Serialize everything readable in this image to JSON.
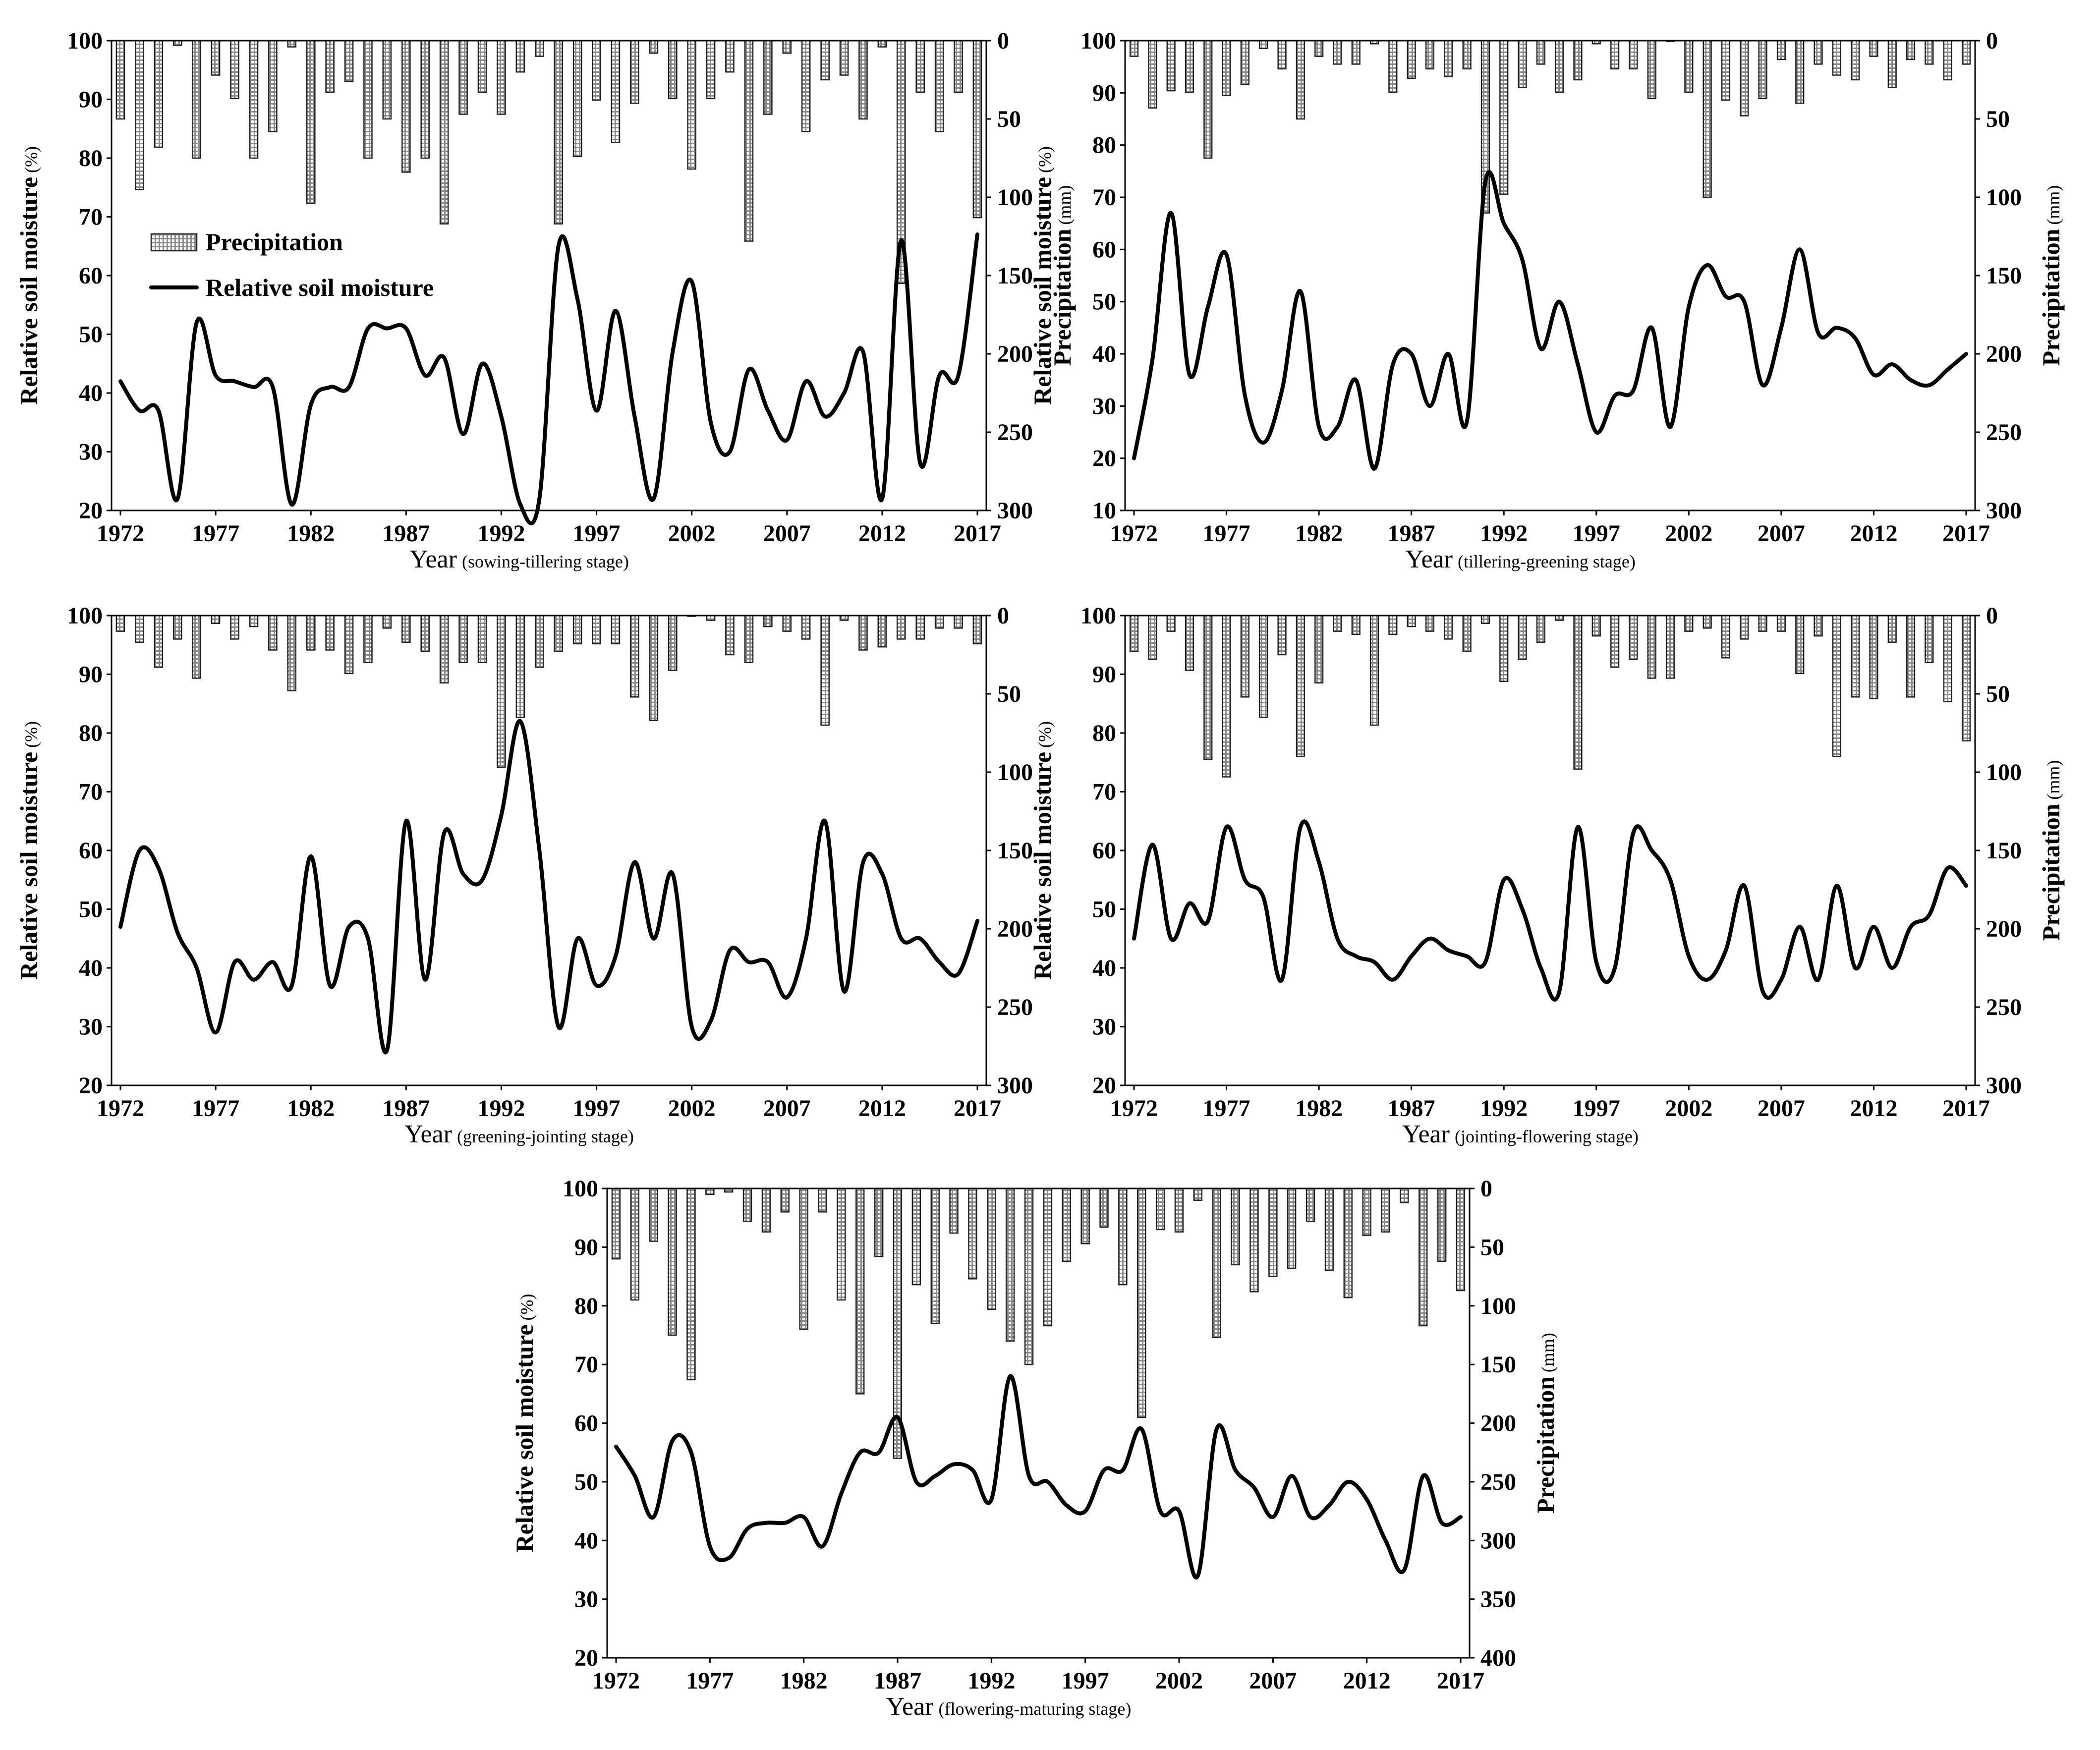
{
  "legend": {
    "precipitation": "Precipitation",
    "soil_moisture": "Relative soil moisture"
  },
  "chart_data": [
    {
      "type": "bar+line",
      "xlabel": "Year",
      "xlabel_note": "(sowing-tillering stage)",
      "ylabel": "Relative soil moisture",
      "ylabel_unit": "(%)",
      "y2label": "Precipitation",
      "y2label_unit": "(mm)",
      "ylim": [
        20,
        100
      ],
      "yticks": [
        20,
        30,
        40,
        50,
        60,
        70,
        80,
        90,
        100
      ],
      "y2lim": [
        0,
        300
      ],
      "y2ticks": [
        0,
        50,
        100,
        150,
        200,
        250,
        300
      ],
      "y2_reversed": true,
      "xticks": [
        1972,
        1977,
        1982,
        1987,
        1992,
        1997,
        2002,
        2007,
        2012,
        2017
      ],
      "years": [
        1972,
        1973,
        1974,
        1975,
        1976,
        1977,
        1978,
        1979,
        1980,
        1981,
        1982,
        1983,
        1984,
        1985,
        1986,
        1987,
        1988,
        1989,
        1990,
        1991,
        1992,
        1993,
        1994,
        1995,
        1996,
        1997,
        1998,
        1999,
        2000,
        2001,
        2002,
        2003,
        2004,
        2005,
        2006,
        2007,
        2008,
        2009,
        2010,
        2011,
        2012,
        2013,
        2014,
        2015,
        2016,
        2017
      ],
      "series": [
        {
          "name": "Precipitation",
          "kind": "bar",
          "axis": "y2",
          "values": [
            50,
            95,
            68,
            3,
            75,
            22,
            37,
            75,
            58,
            4,
            104,
            33,
            26,
            75,
            50,
            84,
            75,
            117,
            47,
            33,
            47,
            20,
            10,
            117,
            74,
            38,
            65,
            40,
            8,
            37,
            82,
            37,
            20,
            128,
            47,
            8,
            58,
            25,
            22,
            50,
            4,
            155,
            33,
            58,
            33,
            113
          ]
        },
        {
          "name": "Relative soil moisture",
          "kind": "line",
          "axis": "y",
          "values": [
            42,
            37,
            37,
            22,
            52,
            43,
            42,
            41,
            41,
            21,
            38,
            41,
            41,
            51,
            51,
            51,
            43,
            46,
            33,
            45,
            36,
            21,
            22,
            65,
            56,
            37,
            54,
            36,
            22,
            47,
            59,
            35,
            30,
            44,
            37,
            32,
            42,
            36,
            40,
            47,
            22,
            66,
            28,
            43,
            43,
            67
          ]
        }
      ]
    },
    {
      "type": "bar+line",
      "xlabel": "Year",
      "xlabel_note": "(tillering-greening stage)",
      "ylabel": "Relative soil moisture",
      "ylabel_unit": "(%)",
      "y2label": "Precipitation",
      "y2label_unit": "(mm)",
      "ylim": [
        10,
        100
      ],
      "yticks": [
        10,
        20,
        30,
        40,
        50,
        60,
        70,
        80,
        90,
        100
      ],
      "y2lim": [
        0,
        300
      ],
      "y2ticks": [
        0,
        50,
        100,
        150,
        200,
        250,
        300
      ],
      "y2_reversed": true,
      "xticks": [
        1972,
        1977,
        1982,
        1987,
        1992,
        1997,
        2002,
        2007,
        2012,
        2017
      ],
      "years": [
        1972,
        1973,
        1974,
        1975,
        1976,
        1977,
        1978,
        1979,
        1980,
        1981,
        1982,
        1983,
        1984,
        1985,
        1986,
        1987,
        1988,
        1989,
        1990,
        1991,
        1992,
        1993,
        1994,
        1995,
        1996,
        1997,
        1998,
        1999,
        2000,
        2001,
        2002,
        2003,
        2004,
        2005,
        2006,
        2007,
        2008,
        2009,
        2010,
        2011,
        2012,
        2013,
        2014,
        2015,
        2016,
        2017
      ],
      "series": [
        {
          "name": "Precipitation",
          "kind": "bar",
          "axis": "y2",
          "values": [
            10,
            43,
            32,
            33,
            75,
            35,
            28,
            5,
            18,
            50,
            10,
            15,
            15,
            2,
            33,
            24,
            18,
            23,
            18,
            110,
            98,
            30,
            15,
            33,
            25,
            2,
            18,
            18,
            37,
            0,
            33,
            100,
            38,
            48,
            37,
            12,
            40,
            15,
            22,
            25,
            10,
            30,
            12,
            15,
            25,
            15
          ]
        },
        {
          "name": "Relative soil moisture",
          "kind": "line",
          "axis": "y",
          "values": [
            20,
            39,
            67,
            36,
            49,
            59,
            32,
            23,
            33,
            52,
            26,
            26,
            35,
            18,
            38,
            40,
            30,
            40,
            27,
            73,
            65,
            58,
            41,
            50,
            38,
            25,
            32,
            33,
            45,
            26,
            49,
            57,
            51,
            50,
            34,
            45,
            60,
            44,
            45,
            43,
            36,
            38,
            35,
            34,
            37,
            40
          ]
        }
      ]
    },
    {
      "type": "bar+line",
      "xlabel": "Year",
      "xlabel_note": "(greening-jointing stage)",
      "ylabel": "Relative soil moisture",
      "ylabel_unit": "(%)",
      "y2label": "",
      "y2label_unit": "",
      "ylim": [
        20,
        100
      ],
      "yticks": [
        20,
        30,
        40,
        50,
        60,
        70,
        80,
        90,
        100
      ],
      "y2lim": [
        0,
        300
      ],
      "y2ticks": [
        0,
        50,
        100,
        150,
        200,
        250,
        300
      ],
      "y2_reversed": true,
      "xticks": [
        1972,
        1977,
        1982,
        1987,
        1992,
        1997,
        2002,
        2007,
        2012,
        2017
      ],
      "years": [
        1972,
        1973,
        1974,
        1975,
        1976,
        1977,
        1978,
        1979,
        1980,
        1981,
        1982,
        1983,
        1984,
        1985,
        1986,
        1987,
        1988,
        1989,
        1990,
        1991,
        1992,
        1993,
        1994,
        1995,
        1996,
        1997,
        1998,
        1999,
        2000,
        2001,
        2002,
        2003,
        2004,
        2005,
        2006,
        2007,
        2008,
        2009,
        2010,
        2011,
        2012,
        2013,
        2014,
        2015,
        2016,
        2017
      ],
      "series": [
        {
          "name": "Precipitation",
          "kind": "bar",
          "axis": "y2",
          "values": [
            10,
            17,
            33,
            15,
            40,
            5,
            15,
            7,
            22,
            48,
            22,
            22,
            37,
            30,
            8,
            17,
            23,
            43,
            30,
            30,
            97,
            65,
            33,
            23,
            18,
            18,
            18,
            52,
            67,
            35,
            0,
            3,
            25,
            30,
            7,
            10,
            15,
            70,
            3,
            22,
            20,
            15,
            15,
            8,
            8,
            18
          ]
        },
        {
          "name": "Relative soil moisture",
          "kind": "line",
          "axis": "y",
          "values": [
            47,
            60,
            57,
            46,
            40,
            29,
            41,
            38,
            41,
            37,
            59,
            37,
            47,
            45,
            26,
            65,
            38,
            63,
            56,
            55,
            66,
            82,
            60,
            30,
            45,
            37,
            42,
            58,
            45,
            56,
            30,
            31,
            43,
            41,
            41,
            35,
            45,
            65,
            36,
            58,
            56,
            45,
            45,
            41,
            39,
            48
          ]
        }
      ]
    },
    {
      "type": "bar+line",
      "xlabel": "Year",
      "xlabel_note": "(jointing-flowering stage)",
      "ylabel": "Relative soil moisture",
      "ylabel_unit": "(%)",
      "y2label": "Precipitation",
      "y2label_unit": "(mm)",
      "ylim": [
        20,
        100
      ],
      "yticks": [
        20,
        30,
        40,
        50,
        60,
        70,
        80,
        90,
        100
      ],
      "y2lim": [
        0,
        300
      ],
      "y2ticks": [
        0,
        50,
        100,
        150,
        200,
        250,
        300
      ],
      "y2_reversed": true,
      "xticks": [
        1972,
        1977,
        1982,
        1987,
        1992,
        1997,
        2002,
        2007,
        2012,
        2017
      ],
      "years": [
        1972,
        1973,
        1974,
        1975,
        1976,
        1977,
        1978,
        1979,
        1980,
        1981,
        1982,
        1983,
        1984,
        1985,
        1986,
        1987,
        1988,
        1989,
        1990,
        1991,
        1992,
        1993,
        1994,
        1995,
        1996,
        1997,
        1998,
        1999,
        2000,
        2001,
        2002,
        2003,
        2004,
        2005,
        2006,
        2007,
        2008,
        2009,
        2010,
        2011,
        2012,
        2013,
        2014,
        2015,
        2016,
        2017
      ],
      "series": [
        {
          "name": "Precipitation",
          "kind": "bar",
          "axis": "y2",
          "values": [
            23,
            28,
            10,
            35,
            92,
            103,
            52,
            65,
            25,
            90,
            43,
            10,
            12,
            70,
            12,
            7,
            10,
            15,
            23,
            5,
            42,
            28,
            17,
            3,
            98,
            13,
            33,
            28,
            40,
            40,
            10,
            8,
            27,
            15,
            10,
            10,
            37,
            13,
            90,
            52,
            53,
            17,
            52,
            30,
            55,
            80
          ]
        },
        {
          "name": "Relative soil moisture",
          "kind": "line",
          "axis": "y",
          "values": [
            45,
            61,
            45,
            51,
            48,
            64,
            55,
            52,
            38,
            64,
            58,
            45,
            42,
            41,
            38,
            42,
            45,
            43,
            42,
            41,
            55,
            50,
            40,
            36,
            64,
            41,
            40,
            63,
            60,
            55,
            42,
            38,
            43,
            54,
            36,
            38,
            47,
            38,
            54,
            40,
            47,
            40,
            47,
            49,
            57,
            54
          ]
        }
      ]
    },
    {
      "type": "bar+line",
      "xlabel": "Year",
      "xlabel_note": "(flowering-maturing stage)",
      "ylabel": "Relative soil moisture",
      "ylabel_unit": "(%)",
      "y2label": "Precipitation",
      "y2label_unit": "(mm)",
      "ylim": [
        20,
        100
      ],
      "yticks": [
        20,
        30,
        40,
        50,
        60,
        70,
        80,
        90,
        100
      ],
      "y2lim": [
        0,
        400
      ],
      "y2ticks": [
        0,
        50,
        100,
        150,
        200,
        250,
        300,
        350,
        400
      ],
      "y2_reversed": true,
      "xticks": [
        1972,
        1977,
        1982,
        1987,
        1992,
        1997,
        2002,
        2007,
        2012,
        2017
      ],
      "years": [
        1972,
        1973,
        1974,
        1975,
        1976,
        1977,
        1978,
        1979,
        1980,
        1981,
        1982,
        1983,
        1984,
        1985,
        1986,
        1987,
        1988,
        1989,
        1990,
        1991,
        1992,
        1993,
        1994,
        1995,
        1996,
        1997,
        1998,
        1999,
        2000,
        2001,
        2002,
        2003,
        2004,
        2005,
        2006,
        2007,
        2008,
        2009,
        2010,
        2011,
        2012,
        2013,
        2014,
        2015,
        2016,
        2017
      ],
      "series": [
        {
          "name": "Precipitation",
          "kind": "bar",
          "axis": "y2",
          "values": [
            60,
            95,
            45,
            125,
            163,
            5,
            3,
            28,
            37,
            20,
            120,
            20,
            95,
            175,
            58,
            230,
            82,
            115,
            38,
            77,
            103,
            130,
            150,
            117,
            62,
            47,
            33,
            82,
            195,
            35,
            37,
            10,
            127,
            65,
            88,
            75,
            68,
            28,
            70,
            93,
            40,
            37,
            12,
            117,
            62,
            87
          ]
        },
        {
          "name": "Relative soil moisture",
          "kind": "line",
          "axis": "y",
          "values": [
            56,
            51,
            44,
            57,
            55,
            39,
            37,
            42,
            43,
            43,
            44,
            39,
            48,
            55,
            55,
            61,
            50,
            51,
            53,
            52,
            47,
            68,
            51,
            50,
            46,
            45,
            52,
            52,
            59,
            45,
            45,
            34,
            59,
            52,
            49,
            44,
            51,
            44,
            46,
            50,
            47,
            40,
            35,
            51,
            43,
            44
          ]
        }
      ]
    }
  ]
}
